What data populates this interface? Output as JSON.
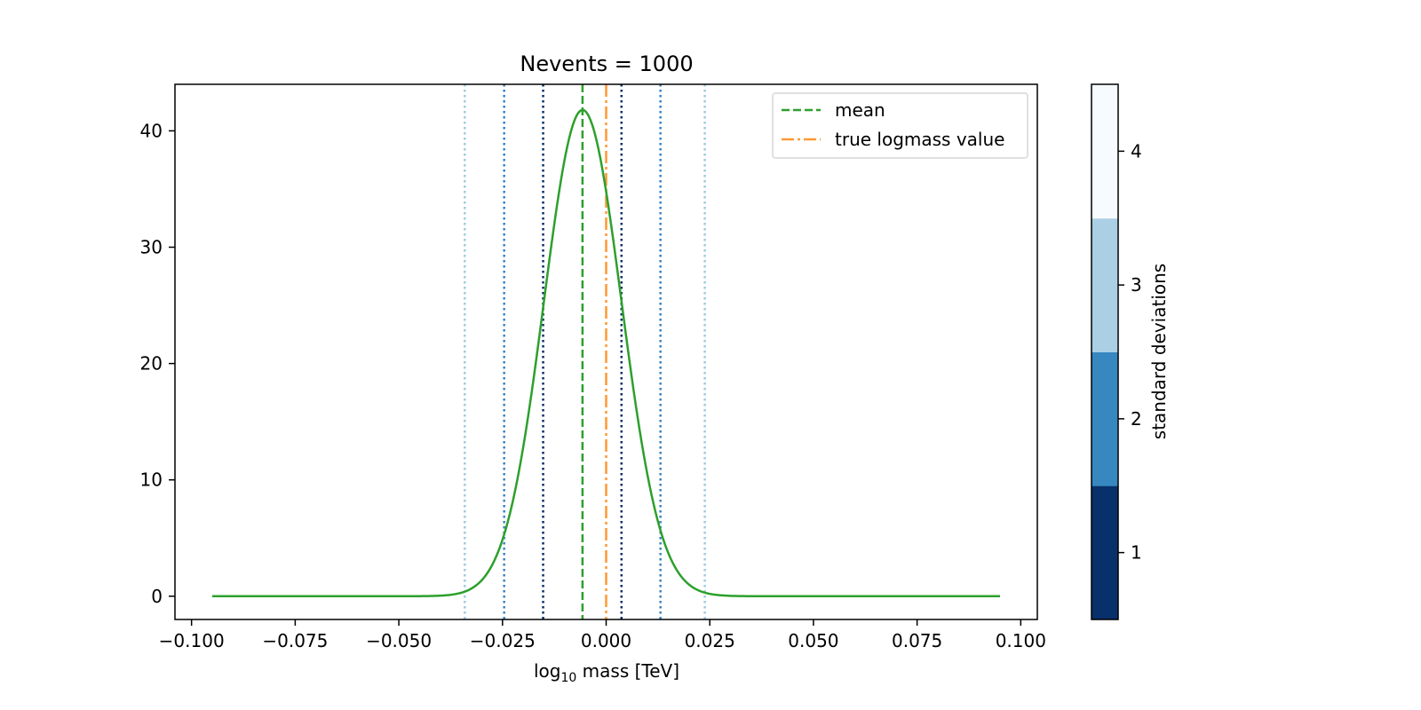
{
  "chart_data": {
    "type": "line",
    "title": "Nevents = 1000",
    "xlabel_main": "log",
    "xlabel_sub": "10",
    "xlabel_rest": " mass [TeV]",
    "ylabel": "",
    "xlim": [
      -0.104,
      0.104
    ],
    "ylim": [
      -2,
      44
    ],
    "xticks": [
      -0.1,
      -0.075,
      -0.05,
      -0.025,
      0.0,
      0.025,
      0.05,
      0.075,
      0.1
    ],
    "xtick_labels": [
      "−0.100",
      "−0.075",
      "−0.050",
      "−0.025",
      "0.000",
      "0.025",
      "0.050",
      "0.075",
      "0.100"
    ],
    "yticks": [
      0,
      10,
      20,
      30,
      40
    ],
    "ytick_labels": [
      "0",
      "10",
      "20",
      "30",
      "40"
    ],
    "grid": false,
    "legend_position": "top-right",
    "series": [
      {
        "kind": "density",
        "color": "#2ca02c",
        "peak_x": -0.0057,
        "peak_y": 41.8,
        "sigma_left": 0.0093,
        "sigma_right": 0.0094,
        "x_range": [
          -0.095,
          0.095
        ]
      }
    ],
    "vlines": [
      {
        "x": -0.0057,
        "color": "#2ca02c",
        "style": "dashed",
        "legend": "mean"
      },
      {
        "x": 0.0,
        "color": "#ff9933",
        "style": "dashdot",
        "legend": "true logmass value"
      },
      {
        "x": -0.0152,
        "color": "#08306b",
        "style": "dotted",
        "sigma": 1
      },
      {
        "x": 0.0037,
        "color": "#08306b",
        "style": "dotted",
        "sigma": 1
      },
      {
        "x": -0.0246,
        "color": "#3a82c0",
        "style": "dotted",
        "sigma": 2
      },
      {
        "x": 0.0131,
        "color": "#3a82c0",
        "style": "dotted",
        "sigma": 2
      },
      {
        "x": -0.0341,
        "color": "#9ecae1",
        "style": "dotted",
        "sigma": 3
      },
      {
        "x": 0.0238,
        "color": "#9ecae1",
        "style": "dotted",
        "sigma": 3
      }
    ],
    "legend": [
      {
        "label": "mean",
        "color": "#2ca02c",
        "style": "dashed"
      },
      {
        "label": "true logmass value",
        "color": "#ff9933",
        "style": "dashdot"
      }
    ],
    "colorbar": {
      "label": "standard deviations",
      "ticks": [
        "1",
        "2",
        "3",
        "4"
      ],
      "colors": [
        "#08306b",
        "#3787c0",
        "#abcfe5",
        "#f7fbff"
      ]
    }
  }
}
